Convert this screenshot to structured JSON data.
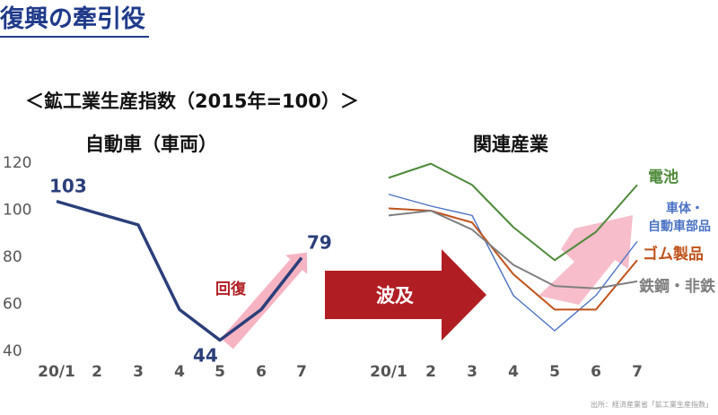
{
  "header": {
    "title": "復興の牽引役",
    "subtitle": "＜鉱工業生産指数（2015年=100）＞",
    "source": "出所：経済産業省「鉱工業生産指数」"
  },
  "colors": {
    "auto": "#2b3f7a",
    "battery": "#4e8a3a",
    "body_parts": "#4a72c4",
    "rubber": "#c0521a",
    "steel": "#7f7f7f",
    "recovery_arrow": "#f4a7b9",
    "ripple_arrow": "#b01e24"
  },
  "annotations": {
    "recovery": "回復",
    "ripple": "波及"
  },
  "chart_data": [
    {
      "type": "line",
      "title": "自動車（車両）",
      "categories": [
        "20/1",
        "2",
        "3",
        "4",
        "5",
        "6",
        "7"
      ],
      "series": [
        {
          "values": [
            103,
            98,
            93,
            57,
            44,
            57,
            79
          ]
        }
      ],
      "data_labels": [
        {
          "index": 0,
          "text": "103"
        },
        {
          "index": 4,
          "text": "44"
        },
        {
          "index": 6,
          "text": "79"
        }
      ],
      "yticks": [
        40,
        60,
        80,
        100,
        120
      ],
      "ytick_labels": [
        "40",
        "60",
        "80",
        "100",
        "120"
      ],
      "ylim": [
        40,
        120
      ],
      "grid": false
    },
    {
      "type": "line",
      "title": "関連産業",
      "categories": [
        "20/1",
        "2",
        "3",
        "4",
        "5",
        "6",
        "7"
      ],
      "series": [
        {
          "name": "電池",
          "color_key": "battery",
          "values": [
            113,
            119,
            110,
            92,
            78,
            90,
            110
          ]
        },
        {
          "name": "車体・自動車部品",
          "color_key": "body_parts",
          "values": [
            106,
            101,
            97,
            63,
            48,
            63,
            86
          ]
        },
        {
          "name": "ゴム製品",
          "color_key": "rubber",
          "values": [
            100,
            99,
            94,
            72,
            57,
            57,
            78
          ]
        },
        {
          "name": "鉄鋼・非鉄",
          "color_key": "steel",
          "values": [
            97,
            99,
            91,
            76,
            67,
            66,
            69
          ]
        }
      ],
      "ylim": [
        40,
        120
      ],
      "grid": false
    }
  ]
}
